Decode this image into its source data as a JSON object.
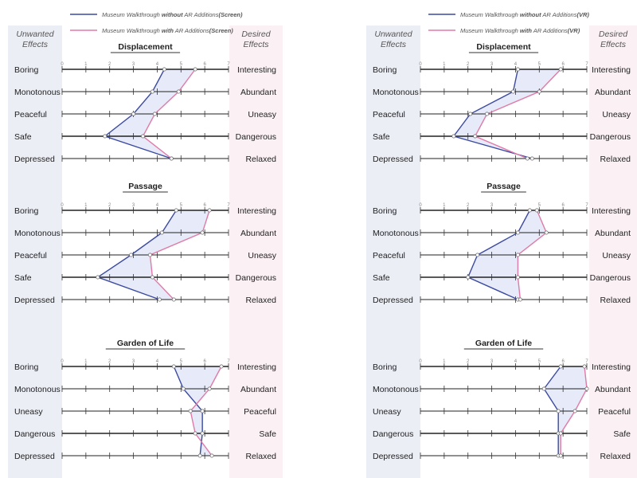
{
  "chart_data": [
    {
      "type": "line",
      "medium": "Screen",
      "legend": {
        "without": {
          "prefix": "Museum Walkthrough ",
          "emph": "without",
          "mid": " AR Additions",
          "suffix": "(Screen)"
        },
        "with": {
          "prefix": "Museum Walkthrough ",
          "emph": "with",
          "mid": " AR Additions",
          "suffix": "(Screen)"
        }
      },
      "left_header": [
        "Unwanted",
        "Effects"
      ],
      "right_header": [
        "Desired",
        "Effects"
      ],
      "x_range": [
        0,
        7
      ],
      "ticks": [
        "0",
        "1",
        "2",
        "3",
        "4",
        "5",
        "6",
        "7"
      ],
      "colors": {
        "without": "#3b4aa0",
        "with": "#e07aa8",
        "fill": "#dfe3f6"
      },
      "panels": [
        {
          "title": "Displacement",
          "left_labels": [
            "Boring",
            "Monotonous",
            "Peaceful",
            "Safe",
            "Depressed"
          ],
          "right_labels": [
            "Interesting",
            "Abundant",
            "Uneasy",
            "Dangerous",
            "Relaxed"
          ],
          "without": [
            4.3,
            3.8,
            3.0,
            1.8,
            4.6
          ],
          "with": [
            5.6,
            4.9,
            3.9,
            3.4,
            4.6
          ]
        },
        {
          "title": "Passage",
          "left_labels": [
            "Boring",
            "Monotonous",
            "Peaceful",
            "Safe",
            "Depressed"
          ],
          "right_labels": [
            "Interesting",
            "Abundant",
            "Uneasy",
            "Dangerous",
            "Relaxed"
          ],
          "without": [
            4.8,
            4.2,
            2.9,
            1.5,
            4.1
          ],
          "with": [
            6.2,
            5.9,
            3.7,
            3.8,
            4.7
          ]
        },
        {
          "title": "Garden of Life",
          "left_labels": [
            "Boring",
            "Monotonous",
            "Uneasy",
            "Dangerous",
            "Depressed"
          ],
          "right_labels": [
            "Interesting",
            "Abundant",
            "Peaceful",
            "Safe",
            "Relaxed"
          ],
          "without": [
            4.7,
            5.1,
            5.9,
            5.9,
            5.8
          ],
          "with": [
            6.7,
            6.2,
            5.4,
            5.6,
            6.3
          ]
        }
      ]
    },
    {
      "type": "line",
      "medium": "VR",
      "legend": {
        "without": {
          "prefix": "Museum Walkthrough ",
          "emph": "without",
          "mid": " AR Additions",
          "suffix": "(VR)"
        },
        "with": {
          "prefix": "Museum Walkthrough ",
          "emph": "with",
          "mid": " AR Additions",
          "suffix": "(VR)"
        }
      },
      "left_header": [
        "Unwanted",
        "Effects"
      ],
      "right_header": [
        "Desired",
        "Effects"
      ],
      "x_range": [
        0,
        7
      ],
      "ticks": [
        "0",
        "1",
        "2",
        "3",
        "4",
        "5",
        "6",
        "7"
      ],
      "colors": {
        "without": "#3b4aa0",
        "with": "#e07aa8",
        "fill": "#dfe3f6"
      },
      "panels": [
        {
          "title": "Displacement",
          "left_labels": [
            "Boring",
            "Monotonous",
            "Peaceful",
            "Safe",
            "Depressed"
          ],
          "right_labels": [
            "Interesting",
            "Abundant",
            "Uneasy",
            "Dangerous",
            "Relaxed"
          ],
          "without": [
            4.1,
            3.9,
            2.1,
            1.4,
            4.7
          ],
          "with": [
            5.9,
            5.0,
            2.8,
            2.3,
            4.5
          ]
        },
        {
          "title": "Passage",
          "left_labels": [
            "Boring",
            "Monotonous",
            "Peaceful",
            "Safe",
            "Depressed"
          ],
          "right_labels": [
            "Interesting",
            "Abundant",
            "Uneasy",
            "Dangerous",
            "Relaxed"
          ],
          "without": [
            4.6,
            4.1,
            2.4,
            2.0,
            4.1
          ],
          "with": [
            4.9,
            5.3,
            4.1,
            4.1,
            4.2
          ]
        },
        {
          "title": "Garden of Life",
          "left_labels": [
            "Boring",
            "Monotonous",
            "Uneasy",
            "Dangerous",
            "Depressed"
          ],
          "right_labels": [
            "Interesting",
            "Abundant",
            "Peaceful",
            "Safe",
            "Relaxed"
          ],
          "without": [
            5.9,
            5.2,
            5.8,
            5.8,
            5.8
          ],
          "with": [
            6.9,
            7.0,
            6.5,
            5.9,
            5.9
          ]
        }
      ]
    }
  ]
}
